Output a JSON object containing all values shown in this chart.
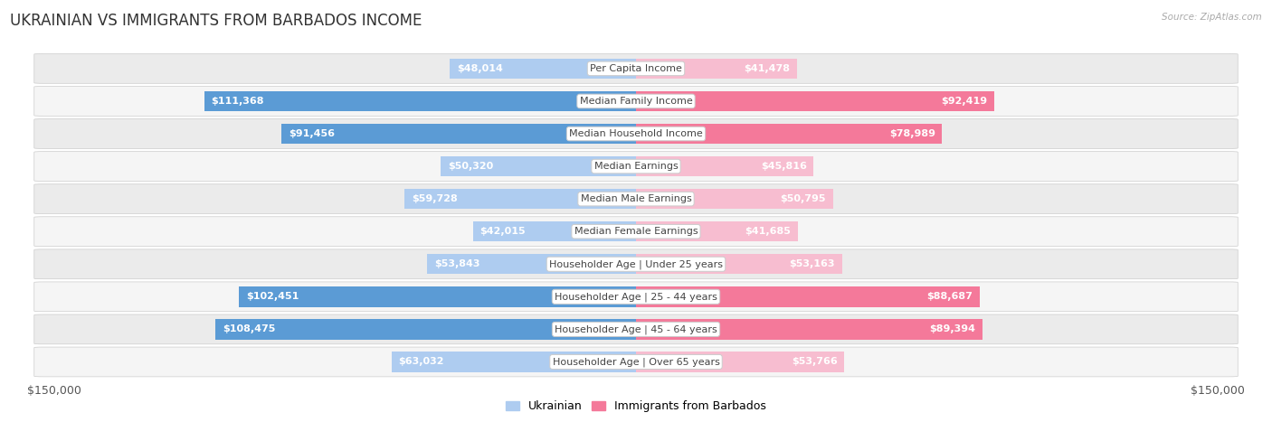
{
  "title": "UKRAINIAN VS IMMIGRANTS FROM BARBADOS INCOME",
  "source": "Source: ZipAtlas.com",
  "categories": [
    "Per Capita Income",
    "Median Family Income",
    "Median Household Income",
    "Median Earnings",
    "Median Male Earnings",
    "Median Female Earnings",
    "Householder Age | Under 25 years",
    "Householder Age | 25 - 44 years",
    "Householder Age | 45 - 64 years",
    "Householder Age | Over 65 years"
  ],
  "ukrainian_values": [
    48014,
    111368,
    91456,
    50320,
    59728,
    42015,
    53843,
    102451,
    108475,
    63032
  ],
  "barbados_values": [
    41478,
    92419,
    78989,
    45816,
    50795,
    41685,
    53163,
    88687,
    89394,
    53766
  ],
  "ukrainian_labels": [
    "$48,014",
    "$111,368",
    "$91,456",
    "$50,320",
    "$59,728",
    "$42,015",
    "$53,843",
    "$102,451",
    "$108,475",
    "$63,032"
  ],
  "barbados_labels": [
    "$41,478",
    "$92,419",
    "$78,989",
    "$45,816",
    "$50,795",
    "$41,685",
    "$53,163",
    "$88,687",
    "$89,394",
    "$53,766"
  ],
  "max_value": 150000,
  "ukrainian_color_light": "#aeccf0",
  "ukrainian_color_dark": "#5b9bd5",
  "barbados_color_light": "#f7bdd0",
  "barbados_color_dark": "#f4799a",
  "inside_threshold": 35000,
  "bar_height": 0.62,
  "row_bg_color": "#eeeeee",
  "row_bg_alt": "#f8f8f8",
  "category_box_color": "#ffffff",
  "category_text_color": "#444444",
  "legend_ukrainian": "Ukrainian",
  "legend_barbados": "Immigrants from Barbados",
  "xlabel_left": "$150,000",
  "xlabel_right": "$150,000",
  "background_color": "#ffffff",
  "title_fontsize": 12,
  "label_fontsize": 8,
  "category_fontsize": 8
}
